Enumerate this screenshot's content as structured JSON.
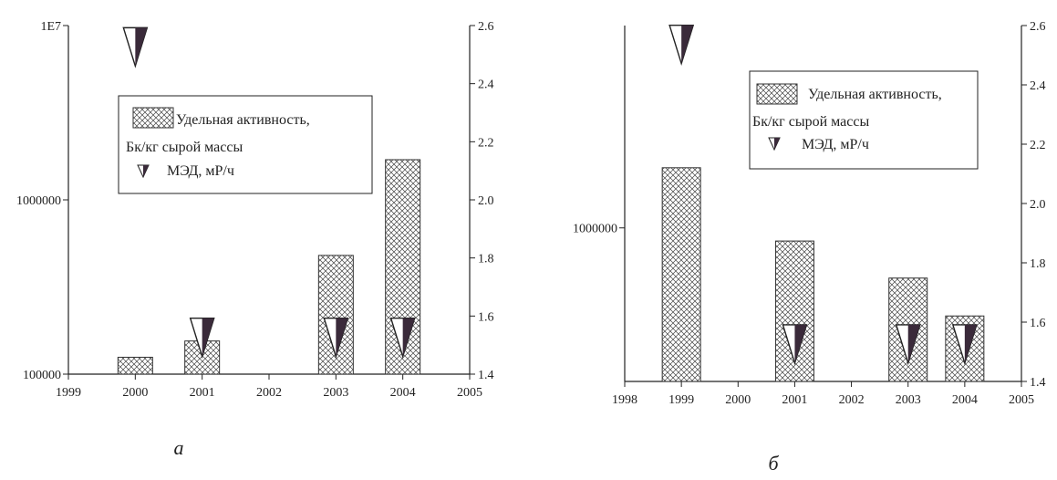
{
  "chart_data": [
    {
      "type": "bar",
      "panel_label": "а",
      "x_ticks": [
        "1999",
        "2000",
        "2001",
        "2002",
        "2003",
        "2004",
        "2005"
      ],
      "xlim": [
        1999,
        2005
      ],
      "y_left": {
        "scale": "log",
        "ylim": [
          100000,
          10000000
        ],
        "ticks": [
          "100000",
          "1000000",
          "1E7"
        ]
      },
      "y_right": {
        "scale": "linear",
        "ylim": [
          1.4,
          2.6
        ],
        "ticks": [
          "1.4",
          "1.6",
          "1.8",
          "2.0",
          "2.2",
          "2.4",
          "2.6"
        ]
      },
      "series": [
        {
          "name": "Удельная активность, Бк/кг сырой массы",
          "axis": "left",
          "kind": "bar",
          "x": [
            2000,
            2001,
            2003,
            2004
          ],
          "values": [
            125000,
            155000,
            480000,
            1700000
          ]
        },
        {
          "name": "МЭД, мР/ч",
          "axis": "right",
          "kind": "marker",
          "x": [
            2000,
            2001,
            2003,
            2004
          ],
          "values": [
            2.52,
            1.52,
            1.52,
            1.52
          ]
        }
      ],
      "legend": {
        "position": "upper-center",
        "lines": [
          "Удельная активность,",
          "Бк/кг сырой массы",
          "МЭД, мР/ч"
        ]
      },
      "grid": false
    },
    {
      "type": "bar",
      "panel_label": "б",
      "x_ticks": [
        "1998",
        "1999",
        "2000",
        "2001",
        "2002",
        "2003",
        "2004",
        "2005"
      ],
      "xlim": [
        1998,
        2005
      ],
      "y_left": {
        "scale": "log",
        "ylim": [
          700000,
          1600000
        ],
        "ticks": [
          "1000000"
        ]
      },
      "y_right": {
        "scale": "linear",
        "ylim": [
          1.4,
          2.6
        ],
        "ticks": [
          "1.4",
          "1.6",
          "1.8",
          "2.0",
          "2.2",
          "2.4",
          "2.6"
        ]
      },
      "series": [
        {
          "name": "Удельная активность, Бк/кг сырой массы",
          "axis": "left",
          "kind": "bar",
          "x": [
            1999,
            2001,
            2003,
            2004
          ],
          "values": [
            1150000,
            970000,
            890000,
            815000
          ]
        },
        {
          "name": "МЭД, мР/ч",
          "axis": "right",
          "kind": "marker",
          "x": [
            1999,
            2001,
            2003,
            2004
          ],
          "values": [
            2.53,
            1.52,
            1.52,
            1.52
          ]
        }
      ],
      "legend": {
        "position": "upper-right",
        "lines": [
          "Удельная активность,",
          "Бк/кг сырой массы",
          "МЭД, мР/ч"
        ]
      },
      "grid": false
    }
  ]
}
